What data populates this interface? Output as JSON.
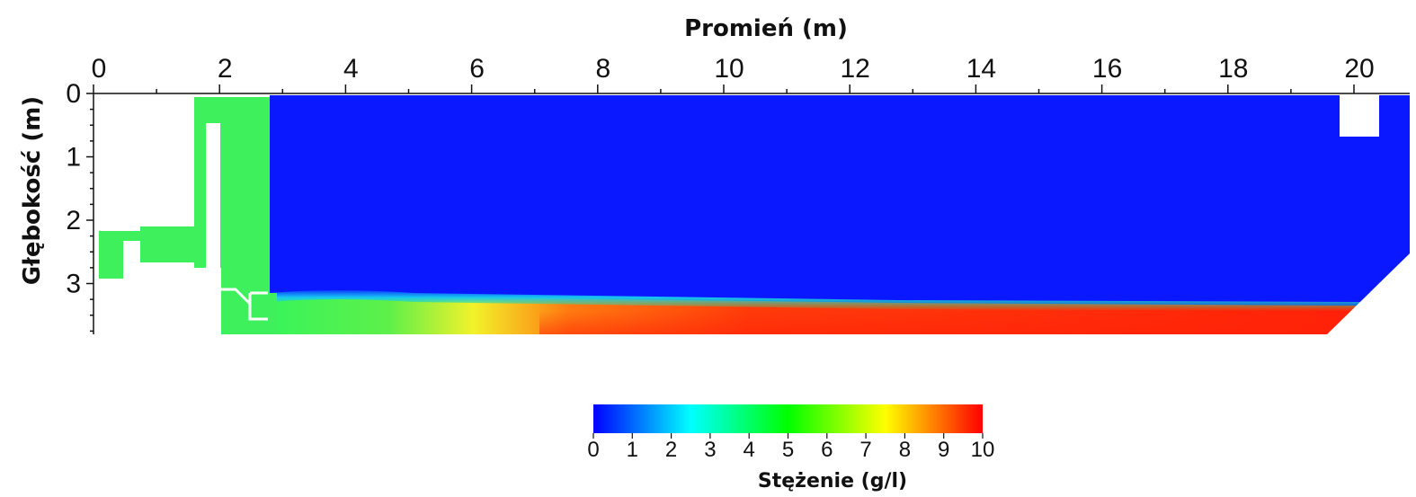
{
  "chart_data": {
    "type": "heatmap",
    "title": "",
    "xlabel": "Promień (m)",
    "ylabel": "Głębokość (m)",
    "xlim": [
      0,
      20.6
    ],
    "ylim": [
      0,
      3.75
    ],
    "x_ticks": [
      "0",
      "2",
      "4",
      "6",
      "8",
      "10",
      "12",
      "14",
      "16",
      "18",
      "20"
    ],
    "y_ticks": [
      "0",
      "1",
      "2",
      "3"
    ],
    "colorbar": {
      "label": "Stężenie (g/l)",
      "range": [
        0,
        10
      ],
      "ticks": [
        "0",
        "1",
        "2",
        "3",
        "4",
        "5",
        "6",
        "7",
        "8",
        "9",
        "10"
      ],
      "colors": [
        "#0000ff",
        "#00ffff",
        "#00ff00",
        "#ffff00",
        "#ff0000"
      ]
    },
    "field": {
      "upper_zone_concentration": 0,
      "inlet_zone_concentration": 5,
      "sludge_blanket_top_depth": 3.2,
      "bottom_layer_concentration_near_wall": 10,
      "profile": [
        {
          "x": 2.8,
          "c": 5
        },
        {
          "x": 6.0,
          "c": 7
        },
        {
          "x": 8.0,
          "c": 9
        },
        {
          "x": 19.8,
          "c": 10
        }
      ]
    }
  }
}
